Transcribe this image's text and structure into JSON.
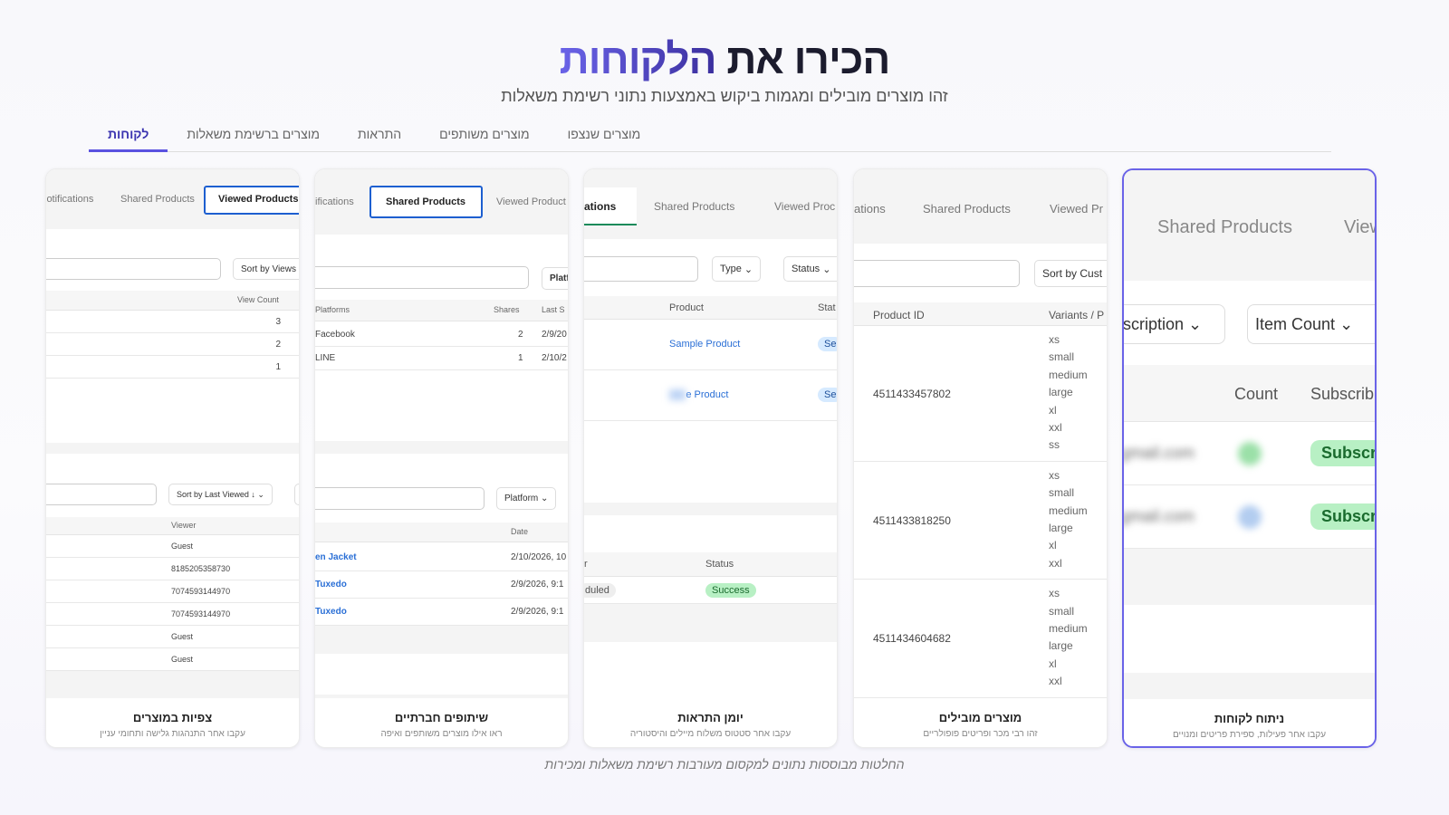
{
  "header": {
    "title_part1": "הכירו את",
    "title_highlight": "הלקוחות",
    "subtitle": "זהו מוצרים מובילים ומגמות ביקוש באמצעות נתוני רשימת משאלות"
  },
  "tabs": [
    {
      "label": "לקוחות",
      "active": true
    },
    {
      "label": "מוצרים ברשימת משאלות"
    },
    {
      "label": "התראות"
    },
    {
      "label": "מוצרים משותפים"
    },
    {
      "label": "מוצרים שנצפו"
    }
  ],
  "cards": [
    {
      "title": "ניתוח לקוחות",
      "desc": "עקבו אחר פעילות, ספירת פריטים ומנויים",
      "tabs": [
        "Shared Products",
        "View"
      ],
      "filters": [
        "scription",
        "Item Count"
      ],
      "headers": [
        "Count",
        "Subscrib"
      ],
      "rows": [
        {
          "email": "gmail.com",
          "badge": "Subscri"
        },
        {
          "email": "gmail.com",
          "badge": "Subscri"
        }
      ]
    },
    {
      "title": "מוצרים מובילים",
      "desc": "זהו רבי מכר ופריטים פופולריים",
      "tabs": [
        "ations",
        "Shared Products",
        "Viewed Pr"
      ],
      "sort": "Sort by Cust",
      "headers": [
        "Product ID",
        "Variants / P"
      ],
      "rows": [
        {
          "id": "4511433457802",
          "variants": [
            "xs",
            "small",
            "medium",
            "large",
            "xl",
            "xxl",
            "ss"
          ]
        },
        {
          "id": "4511433818250",
          "variants": [
            "xs",
            "small",
            "medium",
            "large",
            "xl",
            "xxl"
          ]
        },
        {
          "id": "4511434604682",
          "variants": [
            "xs",
            "small",
            "medium",
            "large",
            "xl",
            "xxl"
          ]
        }
      ]
    },
    {
      "title": "יומן התראות",
      "desc": "עקבו אחר סטטוס משלוח מיילים והיסטוריה",
      "tabs": [
        "ations",
        "Shared Products",
        "Viewed Proc"
      ],
      "filters": [
        "Type",
        "Status"
      ],
      "headers": [
        "Product",
        "Stat"
      ],
      "rows": [
        {
          "product": "Sample Product",
          "badge": "Se"
        },
        {
          "product": "e Product",
          "badge": "Se"
        }
      ],
      "headers2": [
        "r",
        "Status"
      ],
      "rows2": [
        {
          "state": "duled",
          "status": "Success"
        }
      ]
    },
    {
      "title": "שיתופים חברתיים",
      "desc": "ראו אילו מוצרים משותפים ואיפה",
      "tabs": [
        "ifications",
        "Shared Products",
        "Viewed Product"
      ],
      "filter": "Platf",
      "headers": [
        "Platforms",
        "Shares",
        "Last S"
      ],
      "rows": [
        [
          "Facebook",
          "2",
          "2/9/20"
        ],
        [
          "LINE",
          "1",
          "2/10/2"
        ]
      ],
      "filter2": "Platform",
      "headers2": [
        "Date"
      ],
      "rows2": [
        [
          "en Jacket",
          "2/10/2026, 10"
        ],
        [
          "Tuxedo",
          "2/9/2026, 9:1"
        ],
        [
          "Tuxedo",
          "2/9/2026, 9:1"
        ]
      ]
    },
    {
      "title": "צפיות במוצרים",
      "desc": "עקבו אחר התנהגות גלישה ותחומי עניין",
      "tabs": [
        "lotifications",
        "Shared Products",
        "Viewed Products"
      ],
      "sort": "Sort by Views",
      "headers": [
        "View Count"
      ],
      "rows": [
        "3",
        "2",
        "1"
      ],
      "sort2": "Sort by Last Viewed ↓",
      "headers2": [
        "Viewer"
      ],
      "rows2": [
        "Guest",
        "8185205358730",
        "7074593144970",
        "7074593144970",
        "Guest",
        "Guest"
      ]
    }
  ],
  "footer": "החלטות מבוססות נתונים למקסום מעורבות רשימת משאלות ומכירות",
  "colors": {
    "accent": "#5a52e0",
    "success": "#b8f0c4",
    "link": "#2a6fd6"
  }
}
